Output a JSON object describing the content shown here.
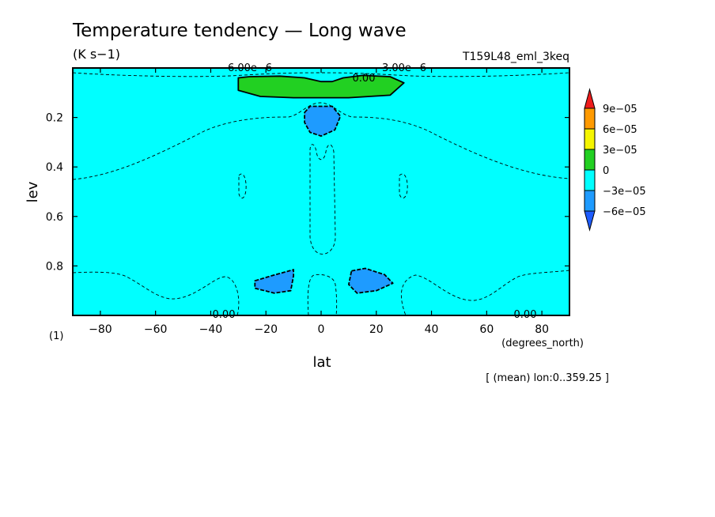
{
  "chart_data": {
    "type": "contour",
    "title": "Temperature tendency — Long wave",
    "units": "(K s−1)",
    "run_label": "T159L48_eml_3keq",
    "xlabel": "lat",
    "xunits": "(degrees_north)",
    "ylabel": "lev",
    "yunits": "(1)",
    "mean_note": "[ (mean) lon:0..359.25 ]",
    "xlim": [
      -90,
      90
    ],
    "ylim": [
      1.0,
      0.0
    ],
    "x_ticks": [
      -80,
      -60,
      -40,
      -20,
      0,
      20,
      40,
      60,
      80
    ],
    "x_tick_labels": [
      "−80",
      "−60",
      "−40",
      "−20",
      "0",
      "20",
      "40",
      "60",
      "80"
    ],
    "y_ticks": [
      0.2,
      0.4,
      0.6,
      0.8
    ],
    "y_tick_labels": [
      "0.2",
      "0.4",
      "0.6",
      "0.8"
    ],
    "colorbar": {
      "levels": [
        "9e−05",
        "6e−05",
        "3e−05",
        "0",
        "−3e−05",
        "−6e−05"
      ],
      "colors": [
        "#ee1c1c",
        "#ff9a00",
        "#f5f500",
        "#22d022",
        "#00ffff",
        "#1e9bff",
        "#1e5cff"
      ]
    },
    "contour_labels": [
      "6.00e−6",
      "3.00e−6",
      "0.00",
      "0.00",
      "0.00"
    ],
    "regions": [
      {
        "fill": "0 to 3e−05",
        "color": "#22d022",
        "shape": [
          [
            -30,
            0.04
          ],
          [
            -26,
            0.035
          ],
          [
            -15,
            0.033
          ],
          [
            -6,
            0.04
          ],
          [
            0,
            0.055
          ],
          [
            4,
            0.055
          ],
          [
            8,
            0.04
          ],
          [
            15,
            0.03
          ],
          [
            25,
            0.035
          ],
          [
            30,
            0.06
          ],
          [
            25,
            0.11
          ],
          [
            10,
            0.12
          ],
          [
            0,
            0.12
          ],
          [
            -10,
            0.12
          ],
          [
            -22,
            0.115
          ],
          [
            -30,
            0.09
          ]
        ]
      },
      {
        "fill": "−6e−05 to −3e−05",
        "color": "#1e9bff",
        "shape": [
          [
            -6,
            0.18
          ],
          [
            -4,
            0.155
          ],
          [
            4,
            0.155
          ],
          [
            7,
            0.195
          ],
          [
            5,
            0.25
          ],
          [
            0,
            0.275
          ],
          [
            -4,
            0.26
          ],
          [
            -6,
            0.22
          ]
        ]
      },
      {
        "fill": "−6e−05 to −3e−05",
        "color": "#1e9bff",
        "shape": [
          [
            -24,
            0.86
          ],
          [
            -18,
            0.84
          ],
          [
            -10,
            0.815
          ],
          [
            -10,
            0.84
          ],
          [
            -11,
            0.9
          ],
          [
            -17,
            0.91
          ],
          [
            -24,
            0.89
          ]
        ]
      },
      {
        "fill": "−6e−05 to −3e−05",
        "color": "#1e9bff",
        "shape": [
          [
            11,
            0.82
          ],
          [
            16,
            0.81
          ],
          [
            23,
            0.835
          ],
          [
            26,
            0.87
          ],
          [
            20,
            0.9
          ],
          [
            13,
            0.91
          ],
          [
            10,
            0.875
          ]
        ]
      }
    ],
    "background_fill": {
      "range": "−3e−05 to 0",
      "color": "#00ffff"
    }
  }
}
